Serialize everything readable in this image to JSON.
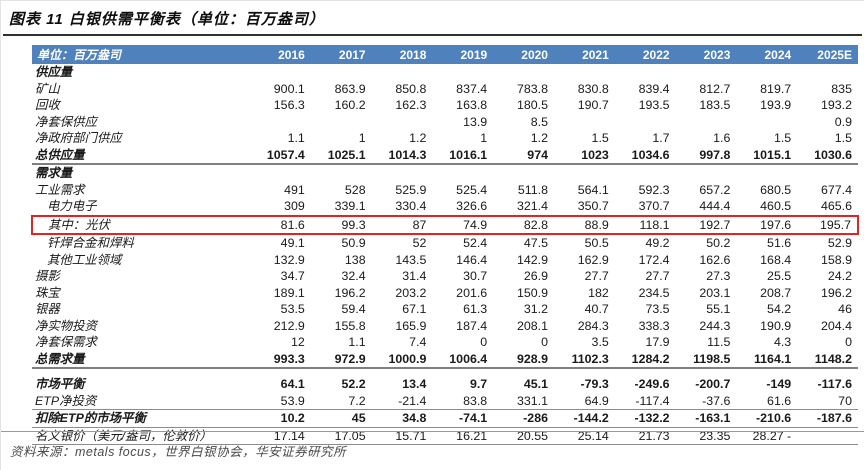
{
  "title": "图表 11 白银供需平衡表（单位：百万盎司）",
  "source_note": "资料来源：metals focus，世界白银协会，华安证券研究所",
  "colors": {
    "header_bg": "#4f81bd",
    "header_text": "#ffffff",
    "highlight_red": "#e32222"
  },
  "table": {
    "header_label": "单位：百万盎司",
    "years": [
      "2016",
      "2017",
      "2018",
      "2019",
      "2020",
      "2021",
      "2022",
      "2023",
      "2024",
      "2025E"
    ],
    "rows": [
      {
        "label": "供应量",
        "style": "section",
        "values": [
          "",
          "",
          "",
          "",
          "",
          "",
          "",
          "",
          "",
          ""
        ]
      },
      {
        "label": "矿山",
        "values": [
          "900.1",
          "863.9",
          "850.8",
          "837.4",
          "783.8",
          "830.8",
          "839.4",
          "812.7",
          "819.7",
          "835"
        ]
      },
      {
        "label": "回收",
        "values": [
          "156.3",
          "160.2",
          "162.3",
          "163.8",
          "180.5",
          "190.7",
          "193.5",
          "183.5",
          "193.9",
          "193.2"
        ]
      },
      {
        "label": "净套保供应",
        "values": [
          "",
          "",
          "",
          "13.9",
          "8.5",
          "",
          "",
          "",
          "",
          "0.9"
        ]
      },
      {
        "label": "净政府部门供应",
        "values": [
          "1.1",
          "1",
          "1.2",
          "1",
          "1.2",
          "1.5",
          "1.7",
          "1.6",
          "1.5",
          "1.5"
        ]
      },
      {
        "label": "总供应量",
        "style": "total",
        "rule": "thick",
        "values": [
          "1057.4",
          "1025.1",
          "1014.3",
          "1016.1",
          "974",
          "1023",
          "1034.6",
          "997.8",
          "1015.1",
          "1030.6"
        ]
      },
      {
        "label": "需求量",
        "style": "section",
        "values": [
          "",
          "",
          "",
          "",
          "",
          "",
          "",
          "",
          "",
          ""
        ]
      },
      {
        "label": "工业需求",
        "values": [
          "491",
          "528",
          "525.9",
          "525.4",
          "511.8",
          "564.1",
          "592.3",
          "657.2",
          "680.5",
          "677.4"
        ]
      },
      {
        "label": "电力电子",
        "indent": true,
        "values": [
          "309",
          "339.1",
          "330.4",
          "326.6",
          "321.4",
          "350.7",
          "370.7",
          "444.4",
          "460.5",
          "465.6"
        ]
      },
      {
        "label": "其中：光伏",
        "indent": true,
        "highlight": true,
        "values": [
          "81.6",
          "99.3",
          "87",
          "74.9",
          "82.8",
          "88.9",
          "118.1",
          "192.7",
          "197.6",
          "195.7"
        ]
      },
      {
        "label": "钎焊合金和焊料",
        "indent": true,
        "values": [
          "49.1",
          "50.9",
          "52",
          "52.4",
          "47.5",
          "50.5",
          "49.2",
          "50.2",
          "51.6",
          "52.9"
        ]
      },
      {
        "label": "其他工业领域",
        "indent": true,
        "values": [
          "132.9",
          "138",
          "143.5",
          "146.4",
          "142.9",
          "162.9",
          "172.4",
          "162.6",
          "168.4",
          "158.9"
        ]
      },
      {
        "label": "摄影",
        "values": [
          "34.7",
          "32.4",
          "31.4",
          "30.7",
          "26.9",
          "27.7",
          "27.7",
          "27.3",
          "25.5",
          "24.2"
        ]
      },
      {
        "label": "珠宝",
        "values": [
          "189.1",
          "196.2",
          "203.2",
          "201.6",
          "150.9",
          "182",
          "234.5",
          "203.1",
          "208.7",
          "196.2"
        ]
      },
      {
        "label": "银器",
        "values": [
          "53.5",
          "59.4",
          "67.1",
          "61.3",
          "31.2",
          "40.7",
          "73.5",
          "55.1",
          "54.2",
          "46"
        ]
      },
      {
        "label": "净实物投资",
        "values": [
          "212.9",
          "155.8",
          "165.9",
          "187.4",
          "208.1",
          "284.3",
          "338.3",
          "244.3",
          "190.9",
          "204.4"
        ]
      },
      {
        "label": "净套保需求",
        "values": [
          "12",
          "1.1",
          "7.4",
          "0",
          "0",
          "3.5",
          "17.9",
          "11.5",
          "4.3",
          "0"
        ]
      },
      {
        "label": "总需求量",
        "style": "total",
        "rule": "thick",
        "values": [
          "993.3",
          "972.9",
          "1000.9",
          "1006.4",
          "928.9",
          "1102.3",
          "1284.2",
          "1198.5",
          "1164.1",
          "1148.2"
        ]
      },
      {
        "label": "市场平衡",
        "style": "total",
        "gap_before": true,
        "values": [
          "64.1",
          "52.2",
          "13.4",
          "9.7",
          "45.1",
          "-79.3",
          "-249.6",
          "-200.7",
          "-149",
          "-117.6"
        ]
      },
      {
        "label": "ETP净投资",
        "rule": "thin",
        "values": [
          "53.9",
          "7.2",
          "-21.4",
          "83.8",
          "331.1",
          "64.9",
          "-117.4",
          "-37.6",
          "61.6",
          "70"
        ]
      },
      {
        "label": "扣除ETP的市场平衡",
        "style": "total",
        "rule": "thin",
        "values": [
          "10.2",
          "45",
          "34.8",
          "-74.1",
          "-286",
          "-144.2",
          "-132.2",
          "-163.1",
          "-210.6",
          "-187.6"
        ]
      },
      {
        "label": "名义银价（美元/盎司，伦敦价）",
        "rule": "thin",
        "values": [
          "17.14",
          "17.05",
          "15.71",
          "16.21",
          "20.55",
          "25.14",
          "21.73",
          "23.35",
          "28.27 -",
          ""
        ]
      }
    ]
  }
}
